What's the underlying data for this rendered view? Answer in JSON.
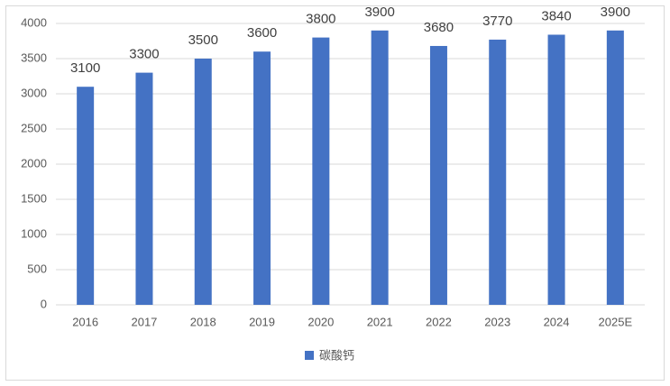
{
  "chart_data": {
    "type": "bar",
    "categories": [
      "2016",
      "2017",
      "2018",
      "2019",
      "2020",
      "2021",
      "2022",
      "2023",
      "2024",
      "2025E"
    ],
    "series": [
      {
        "name": "碳酸钙",
        "color": "#4472c4",
        "values": [
          3100,
          3300,
          3500,
          3600,
          3800,
          3900,
          3680,
          3770,
          3840,
          3900
        ]
      }
    ],
    "ylim": [
      0,
      4000
    ],
    "yticks": [
      0,
      500,
      1000,
      1500,
      2000,
      2500,
      3000,
      3500,
      4000
    ],
    "grid": true,
    "legend": "bottom"
  }
}
